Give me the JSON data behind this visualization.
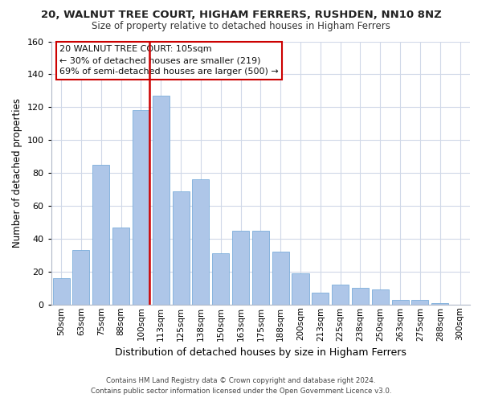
{
  "title": "20, WALNUT TREE COURT, HIGHAM FERRERS, RUSHDEN, NN10 8NZ",
  "subtitle": "Size of property relative to detached houses in Higham Ferrers",
  "xlabel": "Distribution of detached houses by size in Higham Ferrers",
  "ylabel": "Number of detached properties",
  "categories": [
    "50sqm",
    "63sqm",
    "75sqm",
    "88sqm",
    "100sqm",
    "113sqm",
    "125sqm",
    "138sqm",
    "150sqm",
    "163sqm",
    "175sqm",
    "188sqm",
    "200sqm",
    "213sqm",
    "225sqm",
    "238sqm",
    "250sqm",
    "263sqm",
    "275sqm",
    "288sqm",
    "300sqm"
  ],
  "values": [
    16,
    33,
    85,
    47,
    118,
    127,
    69,
    76,
    31,
    45,
    45,
    32,
    19,
    7,
    12,
    10,
    9,
    3,
    3,
    1,
    0
  ],
  "bar_color": "#aec6e8",
  "bar_edge_color": "#7aaddb",
  "vline_index": 4,
  "vline_color": "#cc0000",
  "ylim": [
    0,
    160
  ],
  "yticks": [
    0,
    20,
    40,
    60,
    80,
    100,
    120,
    140,
    160
  ],
  "annotation_title": "20 WALNUT TREE COURT: 105sqm",
  "annotation_line1": "← 30% of detached houses are smaller (219)",
  "annotation_line2": "69% of semi-detached houses are larger (500) →",
  "annotation_box_color": "#ffffff",
  "annotation_box_edgecolor": "#cc0000",
  "footer1": "Contains HM Land Registry data © Crown copyright and database right 2024.",
  "footer2": "Contains public sector information licensed under the Open Government Licence v3.0.",
  "background_color": "#ffffff",
  "grid_color": "#d0d8e8",
  "title_fontsize": 9.5,
  "subtitle_fontsize": 8.5,
  "bar_width": 0.85
}
